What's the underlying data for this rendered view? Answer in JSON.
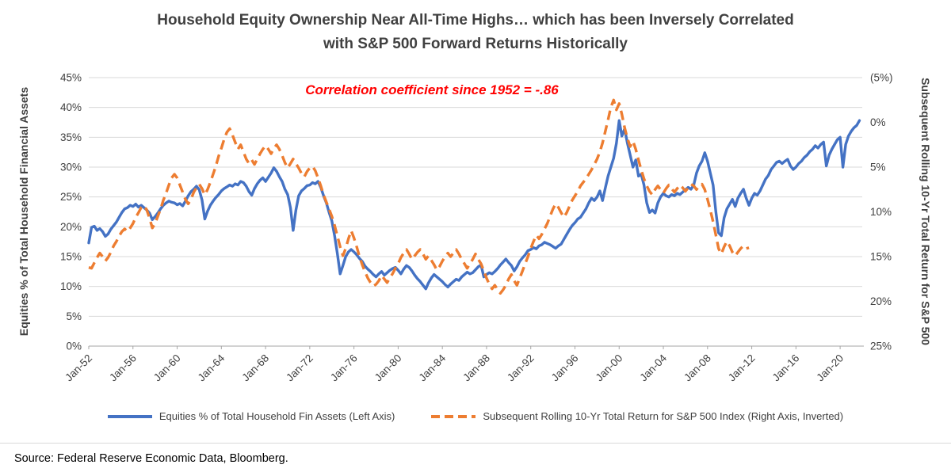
{
  "chart_data": {
    "type": "line",
    "title": {
      "line1": "Household Equity Ownership Near All-Time Highs… which has been Inversely Correlated",
      "line2": "with S&P 500 Forward Returns Historically"
    },
    "annotation": "Correlation coefficient since 1952 = -.86",
    "annotation_color": "#FF0000",
    "grid": true,
    "grid_color": "#D9D9D9",
    "axis_color": "#A6A6A6",
    "legend_position": "bottom",
    "x_axis": {
      "min": 1952,
      "max": 2022,
      "ticks": [
        {
          "label": "Jan-52",
          "year": 1952
        },
        {
          "label": "Jan-56",
          "year": 1956
        },
        {
          "label": "Jan-60",
          "year": 1960
        },
        {
          "label": "Jan-64",
          "year": 1964
        },
        {
          "label": "Jan-68",
          "year": 1968
        },
        {
          "label": "Jan-72",
          "year": 1972
        },
        {
          "label": "Jan-76",
          "year": 1976
        },
        {
          "label": "Jan-80",
          "year": 1980
        },
        {
          "label": "Jan-84",
          "year": 1984
        },
        {
          "label": "Jan-88",
          "year": 1988
        },
        {
          "label": "Jan-92",
          "year": 1992
        },
        {
          "label": "Jan-96",
          "year": 1996
        },
        {
          "label": "Jan-00",
          "year": 2000
        },
        {
          "label": "Jan-04",
          "year": 2004
        },
        {
          "label": "Jan-08",
          "year": 2008
        },
        {
          "label": "Jan-12",
          "year": 2012
        },
        {
          "label": "Jan-16",
          "year": 2016
        },
        {
          "label": "Jan-20",
          "year": 2020
        }
      ]
    },
    "left_axis": {
      "label": "Equities % of Total Household Financial Assets",
      "min": 0,
      "max": 45,
      "ticks": [
        {
          "label": "0%",
          "value": 0
        },
        {
          "label": "5%",
          "value": 5
        },
        {
          "label": "10%",
          "value": 10
        },
        {
          "label": "15%",
          "value": 15
        },
        {
          "label": "20%",
          "value": 20
        },
        {
          "label": "25%",
          "value": 25
        },
        {
          "label": "30%",
          "value": 30
        },
        {
          "label": "35%",
          "value": 35
        },
        {
          "label": "40%",
          "value": 40
        },
        {
          "label": "45%",
          "value": 45
        }
      ]
    },
    "right_axis": {
      "label": "Subsequent Rolling 10-Yr Total Return for S&P 500",
      "min": -5,
      "max": 25,
      "inverted": true,
      "ticks": [
        {
          "label": "(5%)",
          "value": -5
        },
        {
          "label": "0%",
          "value": 0
        },
        {
          "label": "5%",
          "value": 5
        },
        {
          "label": "10%",
          "value": 10
        },
        {
          "label": "15%",
          "value": 15
        },
        {
          "label": "20%",
          "value": 20
        },
        {
          "label": "25%",
          "value": 25
        }
      ]
    },
    "series": [
      {
        "id": "equities-share-line",
        "name": "Equities % of Total Household Fin Assets (Left Axis)",
        "axis": "left",
        "color": "#4472C4",
        "style": "solid",
        "x_start": 1952,
        "x_step": 0.25,
        "values": [
          17.3,
          19.9,
          20.1,
          19.4,
          19.7,
          19.2,
          18.4,
          18.8,
          19.6,
          20.2,
          20.8,
          21.6,
          22.4,
          23.0,
          23.2,
          23.6,
          23.4,
          23.8,
          23.3,
          23.6,
          23.2,
          22.8,
          22.3,
          21.2,
          21.7,
          22.3,
          23.0,
          23.6,
          24.0,
          24.3,
          24.1,
          24.0,
          23.7,
          23.9,
          23.5,
          24.3,
          25.2,
          25.9,
          26.3,
          26.8,
          26.2,
          24.5,
          21.3,
          22.6,
          23.6,
          24.3,
          24.9,
          25.4,
          26.0,
          26.4,
          26.7,
          27.0,
          26.8,
          27.2,
          27.0,
          27.6,
          27.4,
          26.8,
          25.9,
          25.3,
          26.4,
          27.2,
          27.8,
          28.2,
          27.6,
          28.3,
          29.0,
          29.9,
          29.3,
          28.4,
          27.6,
          26.3,
          25.4,
          23.2,
          19.4,
          22.8,
          25.2,
          26.0,
          26.4,
          26.9,
          27.0,
          27.4,
          27.2,
          27.6,
          26.6,
          25.2,
          24.0,
          22.4,
          21.0,
          18.5,
          15.5,
          12.1,
          13.5,
          15.0,
          15.8,
          16.2,
          15.8,
          15.3,
          14.7,
          14.2,
          13.4,
          12.9,
          12.5,
          12.0,
          11.6,
          12.1,
          12.5,
          11.9,
          12.3,
          12.7,
          13.0,
          13.2,
          12.7,
          12.1,
          12.9,
          13.5,
          13.2,
          12.6,
          11.9,
          11.3,
          10.8,
          10.2,
          9.6,
          10.6,
          11.4,
          12.0,
          11.6,
          11.2,
          10.8,
          10.3,
          9.9,
          10.4,
          10.8,
          11.2,
          11.0,
          11.6,
          12.0,
          12.4,
          12.1,
          12.3,
          12.8,
          13.3,
          13.6,
          11.6,
          12.0,
          12.3,
          12.1,
          12.5,
          13.0,
          13.6,
          14.1,
          14.6,
          14.0,
          13.5,
          12.6,
          13.3,
          14.2,
          14.8,
          15.3,
          16.0,
          16.2,
          16.5,
          16.3,
          16.8,
          17.0,
          17.4,
          17.2,
          17.0,
          16.7,
          16.4,
          16.8,
          17.1,
          17.9,
          18.7,
          19.5,
          20.2,
          20.7,
          21.3,
          21.6,
          22.3,
          23.0,
          24.0,
          24.8,
          24.4,
          25.0,
          26.0,
          24.4,
          26.5,
          28.5,
          30.0,
          31.5,
          34.0,
          37.8,
          35.2,
          36.4,
          34.0,
          32.0,
          30.0,
          31.2,
          28.5,
          28.8,
          27.0,
          24.0,
          22.4,
          22.8,
          22.3,
          24.0,
          25.0,
          25.6,
          25.2,
          25.0,
          25.4,
          25.2,
          25.6,
          25.4,
          25.8,
          26.2,
          26.6,
          26.3,
          27.0,
          29.0,
          30.2,
          31.0,
          32.4,
          31.0,
          29.0,
          27.0,
          22.5,
          19.0,
          18.5,
          21.5,
          23.0,
          23.8,
          24.6,
          23.4,
          24.8,
          25.6,
          26.3,
          24.8,
          23.6,
          24.8,
          25.6,
          25.3,
          26.0,
          27.0,
          28.0,
          28.6,
          29.6,
          30.2,
          30.8,
          31.0,
          30.6,
          31.0,
          31.3,
          30.2,
          29.6,
          30.0,
          30.6,
          31.0,
          31.6,
          32.0,
          32.6,
          33.0,
          33.6,
          33.2,
          33.8,
          34.2,
          30.2,
          32.0,
          33.0,
          33.8,
          34.6,
          35.0,
          30.0,
          33.8,
          35.2,
          36.0,
          36.6,
          37.0,
          37.8
        ]
      },
      {
        "id": "sp500-forward-return-line",
        "name": "Subsequent Rolling 10-Yr Total Return for S&P 500 Index (Right Axis, Inverted)",
        "axis": "right",
        "color": "#ED7D31",
        "style": "dashed",
        "x_start": 1952,
        "x_step": 0.25,
        "values": [
          16.2,
          16.3,
          15.7,
          15.1,
          14.6,
          15.0,
          15.5,
          15.1,
          14.5,
          13.8,
          13.3,
          12.7,
          12.2,
          11.9,
          12.2,
          11.8,
          11.3,
          10.6,
          10.1,
          9.5,
          9.3,
          9.8,
          10.7,
          11.8,
          11.3,
          10.5,
          9.7,
          8.7,
          7.9,
          7.0,
          6.2,
          5.8,
          6.2,
          7.0,
          7.8,
          8.6,
          9.1,
          8.6,
          7.8,
          7.3,
          6.9,
          7.4,
          8.1,
          7.5,
          6.7,
          5.8,
          4.9,
          3.8,
          2.9,
          1.9,
          1.1,
          0.7,
          1.4,
          2.2,
          3.0,
          2.5,
          3.3,
          4.1,
          4.6,
          4.2,
          4.7,
          4.1,
          3.5,
          3.0,
          2.6,
          3.0,
          3.5,
          2.9,
          2.5,
          3.0,
          3.7,
          4.5,
          5.1,
          4.6,
          4.1,
          4.6,
          5.1,
          5.7,
          6.1,
          5.5,
          5.1,
          4.9,
          5.4,
          6.2,
          7.1,
          8.1,
          8.9,
          9.7,
          10.5,
          11.5,
          12.7,
          13.9,
          14.9,
          14.1,
          13.0,
          12.1,
          12.9,
          13.9,
          15.0,
          15.9,
          16.7,
          17.4,
          17.9,
          18.3,
          18.1,
          17.7,
          17.1,
          17.5,
          17.9,
          17.4,
          16.9,
          16.3,
          15.8,
          15.1,
          14.6,
          14.2,
          14.7,
          15.3,
          14.9,
          14.5,
          14.2,
          14.7,
          15.3,
          14.9,
          15.4,
          15.9,
          16.5,
          16.1,
          15.5,
          15.0,
          14.6,
          15.0,
          14.6,
          14.2,
          14.7,
          15.3,
          15.8,
          16.3,
          15.8,
          15.3,
          14.7,
          15.3,
          15.8,
          16.6,
          17.4,
          18.1,
          18.6,
          18.2,
          18.7,
          19.1,
          18.7,
          18.2,
          17.5,
          17.0,
          17.7,
          18.2,
          17.4,
          16.6,
          15.8,
          15.0,
          14.1,
          13.3,
          12.6,
          13.0,
          12.5,
          11.9,
          11.3,
          10.5,
          9.7,
          9.1,
          9.5,
          10.1,
          10.6,
          10.1,
          9.4,
          8.7,
          8.2,
          7.7,
          7.1,
          6.7,
          6.3,
          5.8,
          5.3,
          4.7,
          4.1,
          3.3,
          2.3,
          1.0,
          -0.3,
          -1.7,
          -2.5,
          -1.4,
          -2.1,
          -0.9,
          0.6,
          1.8,
          2.7,
          2.1,
          3.0,
          4.2,
          5.3,
          6.3,
          7.1,
          7.7,
          8.1,
          7.5,
          7.1,
          7.5,
          7.9,
          7.4,
          7.0,
          7.4,
          7.8,
          7.4,
          7.0,
          7.3,
          7.7,
          7.3,
          6.9,
          7.1,
          7.5,
          7.1,
          6.9,
          7.5,
          8.6,
          9.8,
          11.1,
          12.6,
          14.1,
          14.7,
          13.9,
          13.3,
          13.8,
          14.5,
          14.9,
          14.5,
          14.1,
          13.8,
          14.1,
          14.0
        ]
      }
    ]
  },
  "source": "Source: Federal Reserve Economic Data, Bloomberg."
}
